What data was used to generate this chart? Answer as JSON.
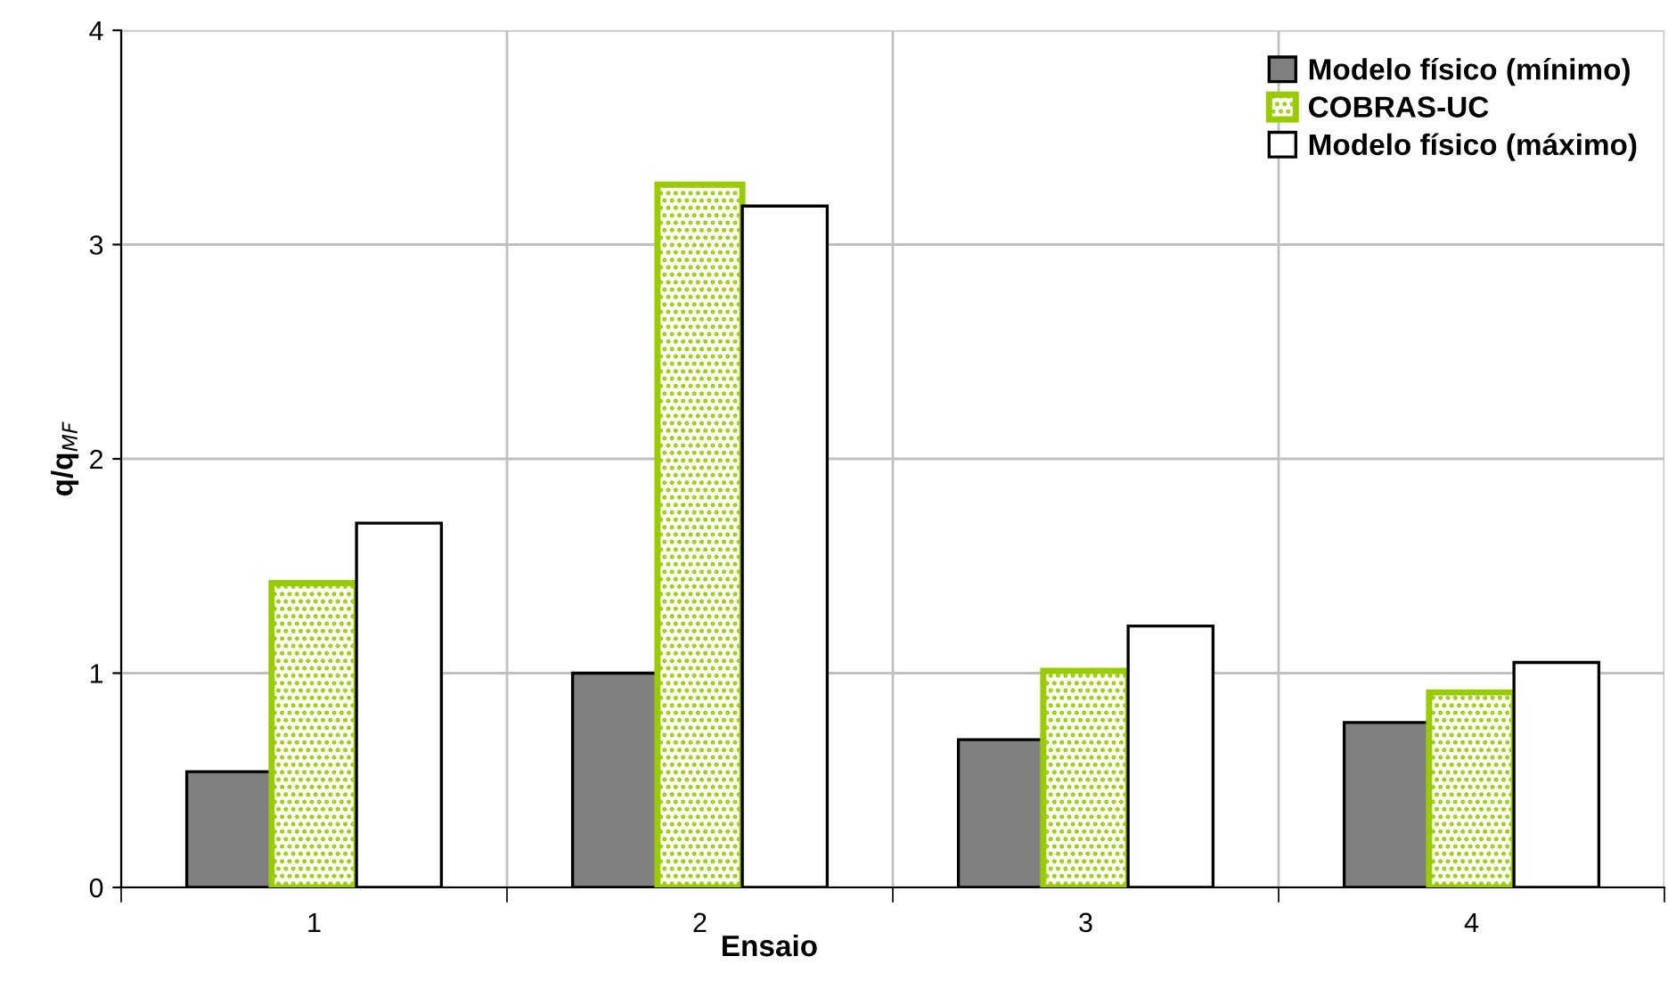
{
  "chart_data": {
    "type": "bar",
    "xlabel": "Ensaio",
    "ylabel": "q/q$_{MF}$",
    "categories": [
      "1",
      "2",
      "3",
      "4"
    ],
    "series": [
      {
        "name": "Modelo físico (mínimo)",
        "color": "#808080",
        "values": [
          0.54,
          1.0,
          0.69,
          0.77
        ]
      },
      {
        "name": "COBRAS-UC",
        "color": "#99cc00",
        "values": [
          1.42,
          3.28,
          1.01,
          0.91
        ]
      },
      {
        "name": "Modelo físico (máximo)",
        "color": "#ffffff",
        "values": [
          1.7,
          3.18,
          1.22,
          1.05
        ]
      }
    ],
    "ylim": [
      0,
      4
    ],
    "yticks": [
      0,
      1,
      2,
      3,
      4
    ],
    "grid": true,
    "legend": "top right"
  }
}
